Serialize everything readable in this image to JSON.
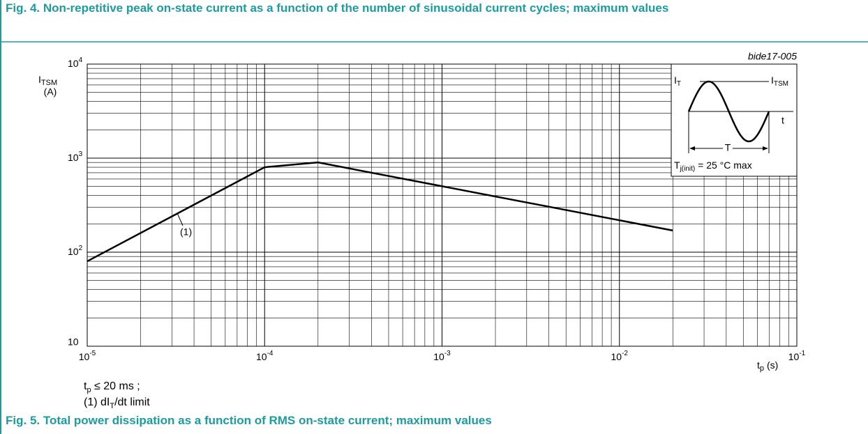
{
  "chart_data": {
    "type": "line",
    "title": "Fig. 4. Non-repetitive peak on-state current as a function of the number of sinusoidal current cycles; maximum values",
    "x": [
      1e-05,
      0.0001,
      0.0002,
      0.02
    ],
    "series": [
      {
        "name": "(1)",
        "color": "#000000",
        "values": [
          80,
          800,
          900,
          170
        ]
      }
    ],
    "xlim": [
      1e-05,
      0.1
    ],
    "ylim": [
      10,
      10000
    ],
    "xticks": [
      {
        "value": 1e-05,
        "label": "10",
        "exponent": "-5"
      },
      {
        "value": 0.0001,
        "label": "10",
        "exponent": "-4"
      },
      {
        "value": 0.001,
        "label": "10",
        "exponent": "-3"
      },
      {
        "value": 0.01,
        "label": "10",
        "exponent": "-2"
      },
      {
        "value": 0.1,
        "label": "10",
        "exponent": "-1"
      }
    ],
    "yticks": [
      10,
      {
        "value": 100,
        "label": "10",
        "exponent": "2"
      },
      {
        "value": 1000,
        "label": "10",
        "exponent": "3"
      },
      {
        "value": 10000,
        "label": "10",
        "exponent": "4"
      }
    ],
    "xscale": "log",
    "yscale": "log",
    "grid": true,
    "ylabel": {
      "main": "I",
      "sub": "TSM",
      "unit": "(A)"
    },
    "xlabel": {
      "main": "t",
      "sub": "p",
      "unit": "(s)"
    },
    "figure_code": "bide17-005",
    "inset": {
      "it": {
        "main": "I",
        "sub": "T"
      },
      "itsm": {
        "main": "I",
        "sub": "TSM"
      },
      "t": "t",
      "period": "T",
      "condition": {
        "main": "T",
        "sub": "j(init)",
        "rest": " = 25 °C max"
      }
    },
    "notes": [
      {
        "main": "t",
        "sub": "p",
        "rest": " ≤ 20 ms ;"
      },
      {
        "main": "(1) dI",
        "sub": "T",
        "rest": "/dt limit"
      }
    ],
    "footer": "Fig. 5. Total power dissipation as a function of RMS on-state current; maximum values"
  }
}
